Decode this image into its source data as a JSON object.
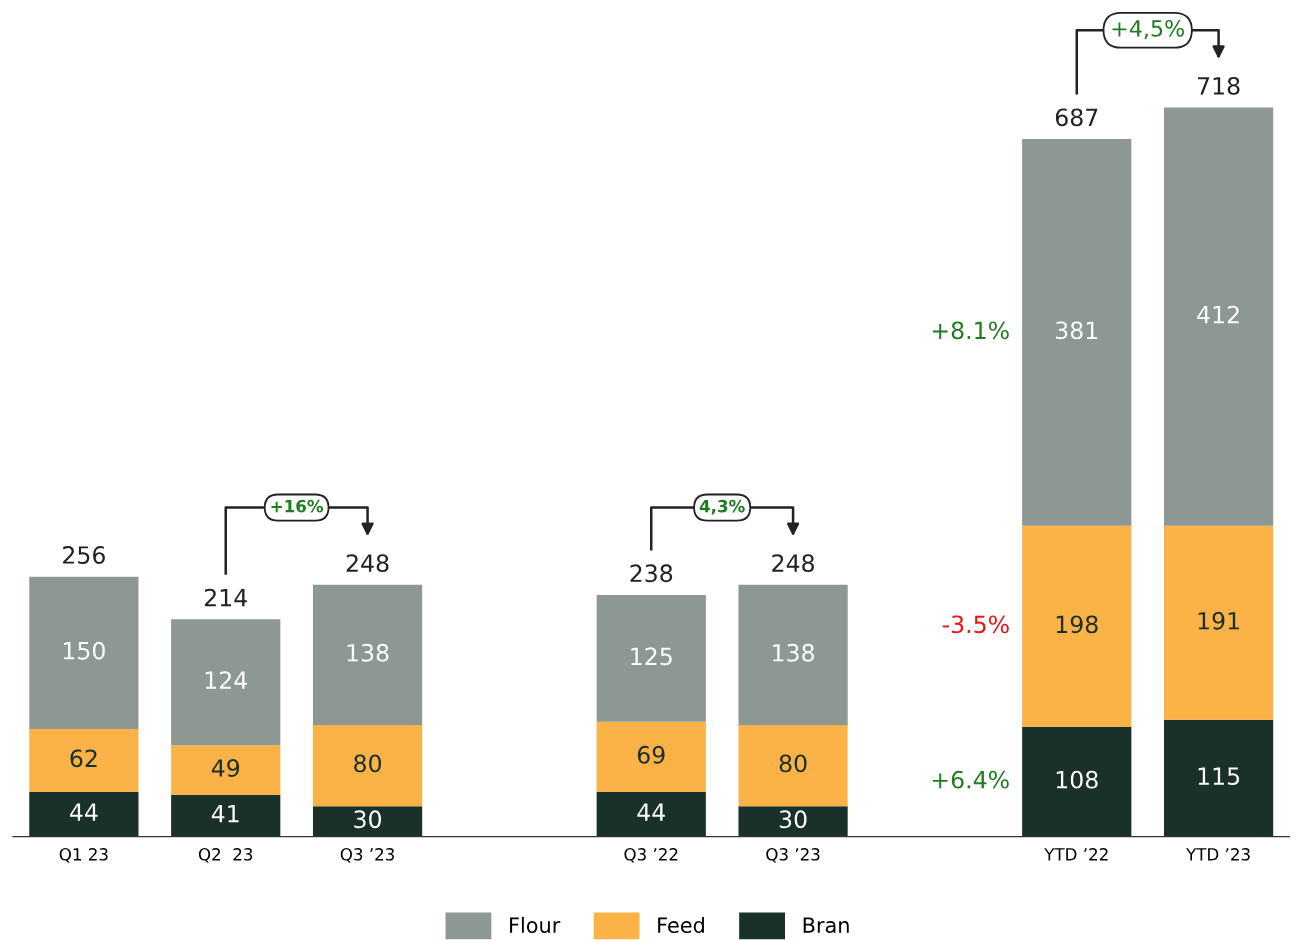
{
  "chart_data": {
    "type": "bar",
    "stacked": true,
    "categories": [
      "Q1 23",
      "Q2  23",
      "Q3 ’23",
      null,
      "Q3 ’22",
      "Q3 ’23",
      null,
      "YTD ’22",
      "YTD ’23"
    ],
    "series": [
      {
        "name": "Bran",
        "color": "#1a302a",
        "values": [
          44,
          41,
          30,
          null,
          44,
          30,
          null,
          108,
          115
        ]
      },
      {
        "name": "Feed",
        "color": "#fbb247",
        "values": [
          62,
          49,
          80,
          null,
          69,
          80,
          null,
          198,
          191
        ]
      },
      {
        "name": "Flour",
        "color": "#8c9891",
        "values": [
          150,
          124,
          138,
          null,
          125,
          138,
          null,
          381,
          412
        ]
      }
    ],
    "totals": [
      "256",
      "214",
      "248",
      null,
      "238",
      "248",
      null,
      "687",
      "718"
    ],
    "data_labels": true,
    "annotations": [
      "+16%",
      "4,3%",
      "+4,5%",
      "+8.1%",
      "-3.5%",
      "+6.4%"
    ],
    "legend": "bottom",
    "grid": false,
    "tick_labels": "x"
  }
}
